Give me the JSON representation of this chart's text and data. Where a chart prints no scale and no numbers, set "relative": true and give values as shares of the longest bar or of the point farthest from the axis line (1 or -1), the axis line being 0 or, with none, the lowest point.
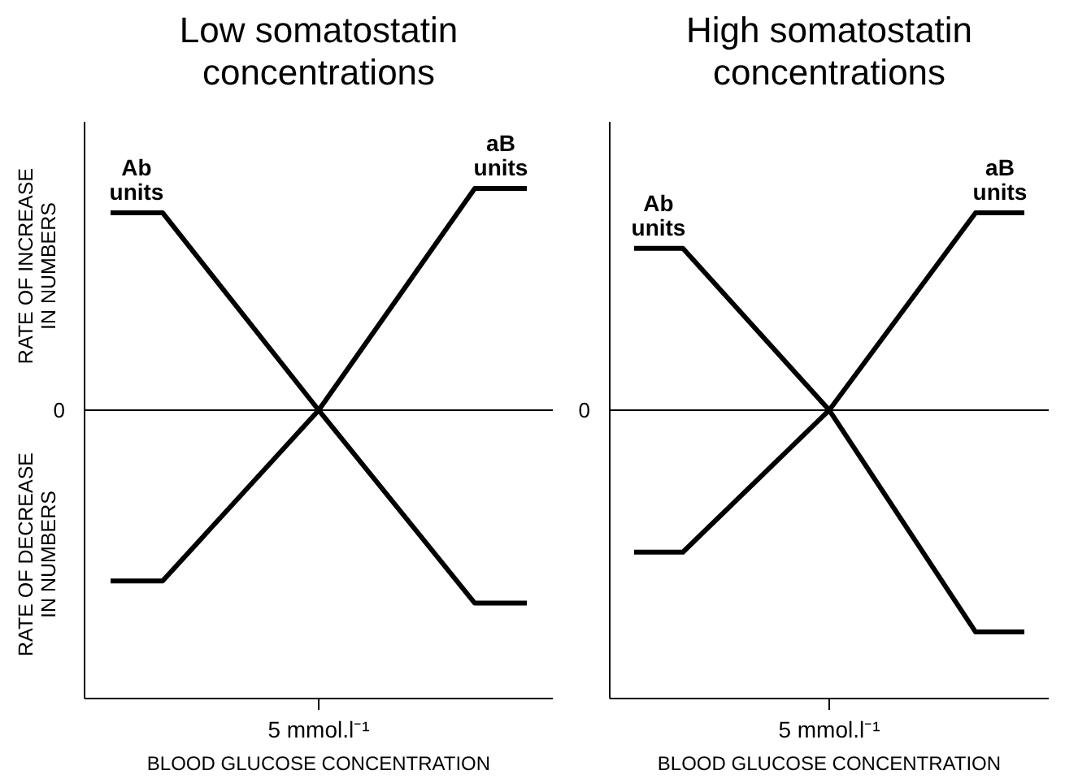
{
  "chart_data": [
    {
      "type": "line",
      "title": "Low somatostatin concentrations",
      "xlabel": "BLOOD GLUCOSE CONCENTRATION",
      "ylabel": "RATE OF INCREASE IN NUMBERS",
      "annotations": [
        "5 mmol.l⁻¹",
        "RATE OF DECREASE IN NUMBERS"
      ],
      "relative": true,
      "categories": [
        null,
        null,
        null,
        null,
        null,
        null,
        null,
        null,
        null
      ],
      "series": [
        {
          "name": "Ab units",
          "color": "#000000",
          "values": [
            0.89,
            0.89,
            null,
            null,
            0,
            null,
            null,
            -0.87,
            -0.87
          ]
        },
        {
          "name": "aB units",
          "color": "#000000",
          "values": [
            -0.77,
            -0.77,
            null,
            null,
            0,
            null,
            null,
            1,
            1
          ]
        }
      ],
      "ref_lines": [
        {
          "axis": "y",
          "value": 0,
          "label": "0"
        }
      ]
    },
    {
      "type": "line",
      "title": "High somatostatin concentrations",
      "xlabel": "BLOOD GLUCOSE CONCENTRATION",
      "annotations": [
        "5 mmol.l⁻¹"
      ],
      "relative": true,
      "categories": [
        null,
        null,
        null,
        null,
        null,
        null,
        null,
        null,
        null
      ],
      "series": [
        {
          "name": "Ab units",
          "color": "#000000",
          "values": [
            0.73,
            0.73,
            null,
            null,
            0,
            null,
            null,
            -1,
            -1
          ]
        },
        {
          "name": "aB units",
          "color": "#000000",
          "values": [
            -0.64,
            -0.64,
            null,
            null,
            0,
            null,
            null,
            0.89,
            0.89
          ]
        }
      ],
      "ref_lines": [
        {
          "axis": "y",
          "value": 0,
          "label": "0"
        }
      ]
    }
  ]
}
